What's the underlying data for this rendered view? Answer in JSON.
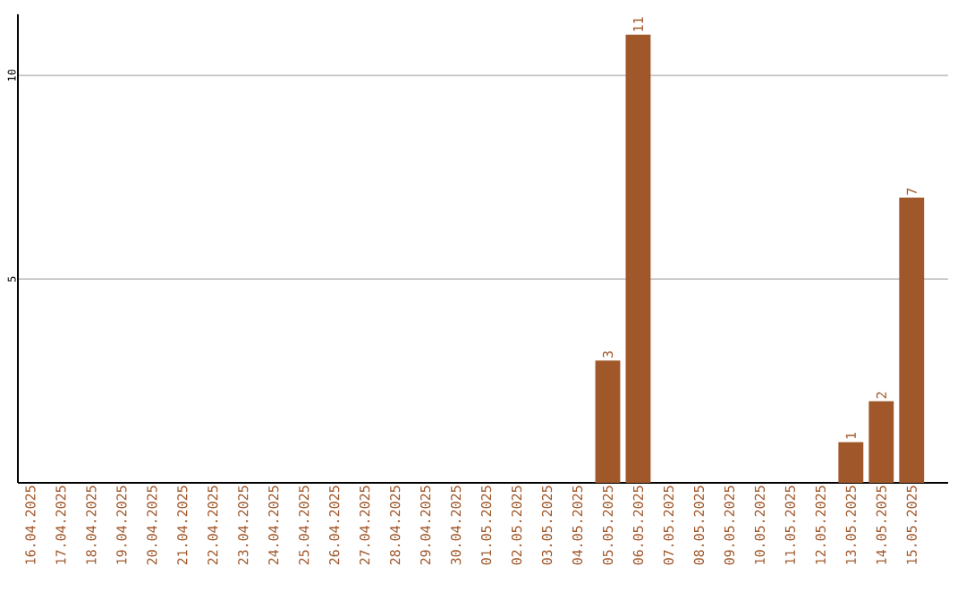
{
  "chart_data": {
    "type": "bar",
    "categories": [
      "16.04.2025",
      "17.04.2025",
      "18.04.2025",
      "19.04.2025",
      "20.04.2025",
      "21.04.2025",
      "22.04.2025",
      "23.04.2025",
      "24.04.2025",
      "25.04.2025",
      "26.04.2025",
      "27.04.2025",
      "28.04.2025",
      "29.04.2025",
      "30.04.2025",
      "01.05.2025",
      "02.05.2025",
      "03.05.2025",
      "04.05.2025",
      "05.05.2025",
      "06.05.2025",
      "07.05.2025",
      "08.05.2025",
      "09.05.2025",
      "10.05.2025",
      "11.05.2025",
      "12.05.2025",
      "13.05.2025",
      "14.05.2025",
      "15.05.2025"
    ],
    "values": [
      0,
      0,
      0,
      0,
      0,
      0,
      0,
      0,
      0,
      0,
      0,
      0,
      0,
      0,
      0,
      0,
      0,
      0,
      0,
      3,
      11,
      0,
      0,
      0,
      0,
      0,
      0,
      1,
      2,
      7
    ],
    "value_labels": [
      null,
      null,
      null,
      null,
      null,
      null,
      null,
      null,
      null,
      null,
      null,
      null,
      null,
      null,
      null,
      null,
      null,
      null,
      null,
      "3",
      "11",
      null,
      null,
      null,
      null,
      null,
      null,
      "1",
      "2",
      "7"
    ],
    "color": "#a0572a",
    "ylim": [
      0,
      11.5
    ],
    "yticks": [
      5,
      10
    ],
    "grid": "y"
  }
}
